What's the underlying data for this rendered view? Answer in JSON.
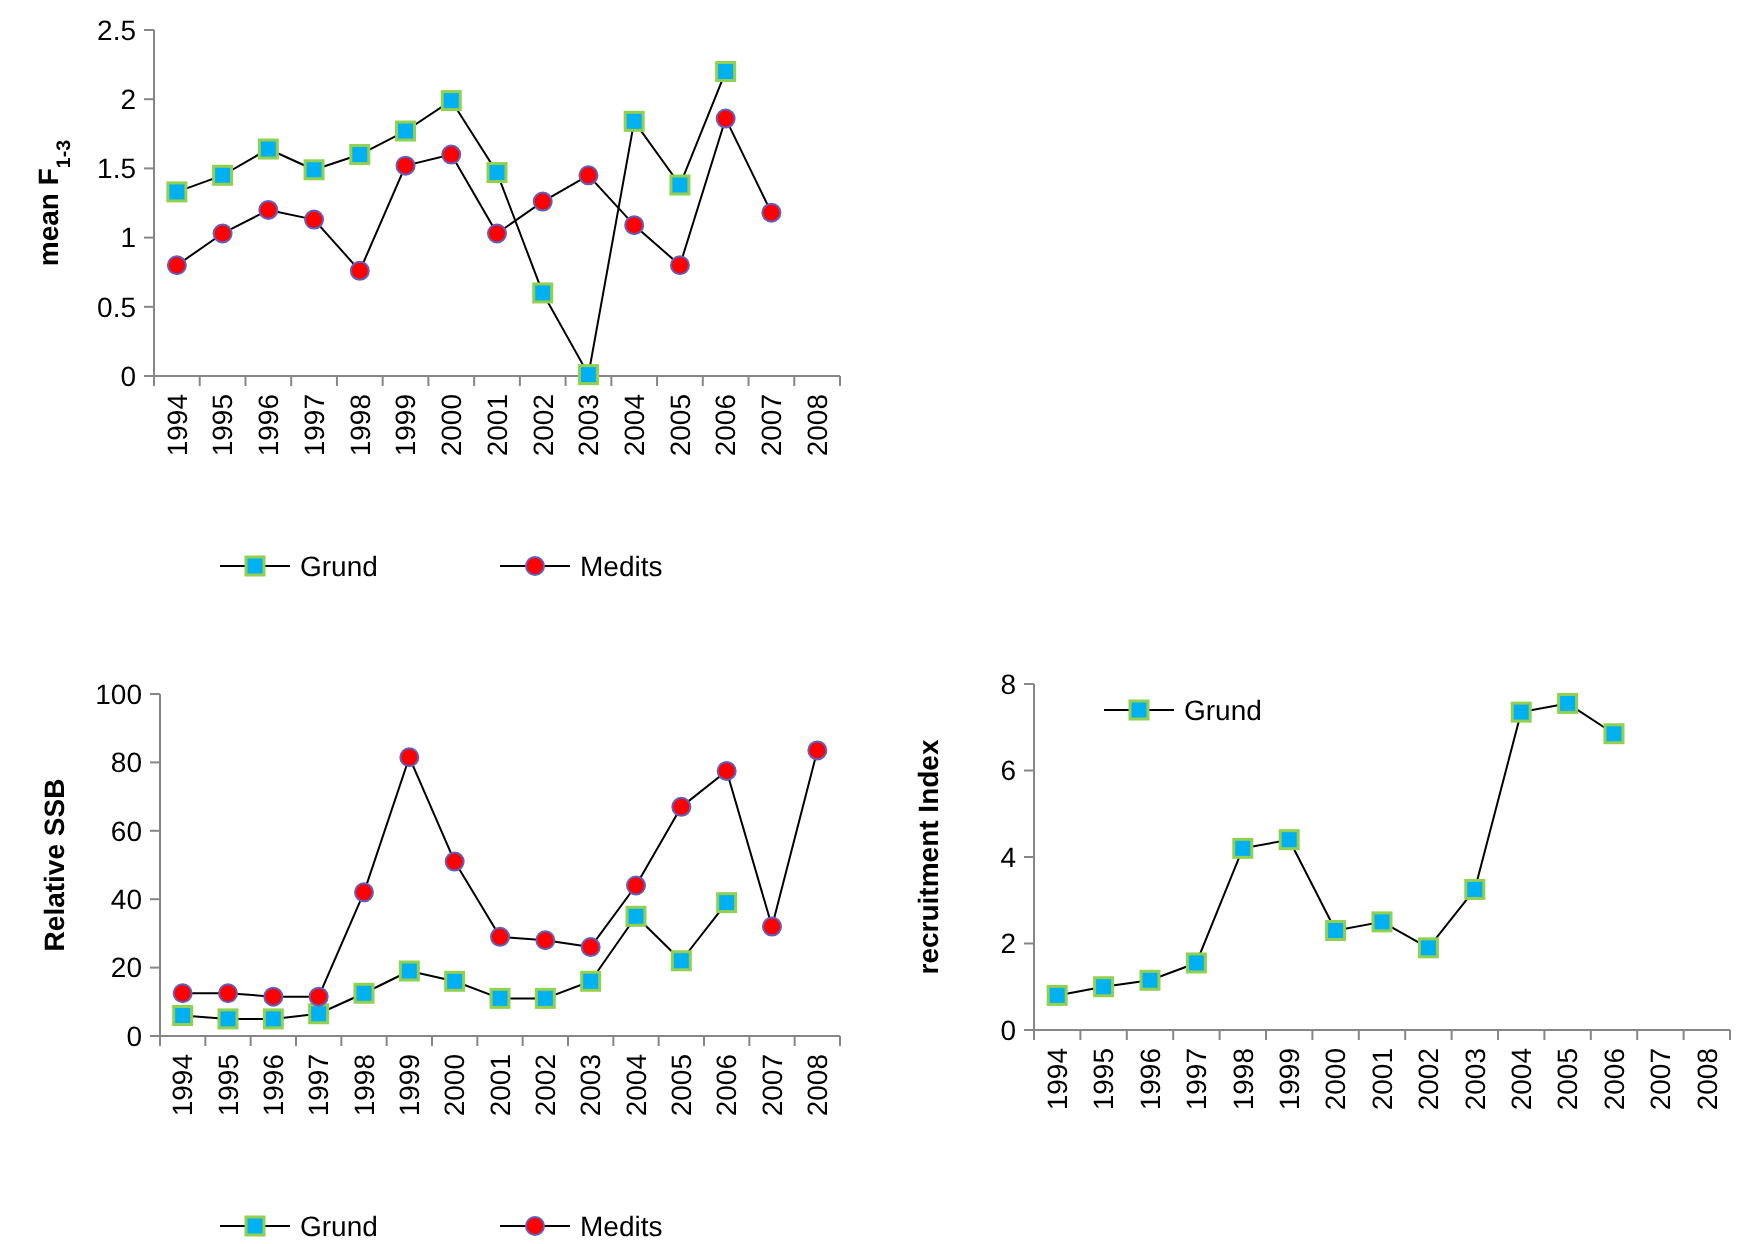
{
  "chart_data": [
    {
      "type": "line",
      "ylabel": "mean F$_{1-3}$",
      "categories": [
        "1994",
        "1995",
        "1996",
        "1997",
        "1998",
        "1999",
        "2000",
        "2001",
        "2002",
        "2003",
        "2004",
        "2005",
        "2006",
        "2007",
        "2008"
      ],
      "ylim": [
        0,
        2.5
      ],
      "yticks": [
        0,
        0.5,
        1,
        1.5,
        2,
        2.5
      ],
      "grid": false,
      "legend": "bottom",
      "series": [
        {
          "name": "Grund",
          "color": "#00b0f0",
          "marker": "square",
          "values": [
            1.33,
            1.45,
            1.64,
            1.49,
            1.6,
            1.77,
            1.99,
            1.47,
            0.6,
            0.01,
            1.84,
            1.38,
            2.2,
            null,
            null
          ]
        },
        {
          "name": "Medits",
          "color": "#ff0000",
          "marker": "circle",
          "values": [
            0.8,
            1.03,
            1.2,
            1.13,
            0.76,
            1.52,
            1.6,
            1.03,
            1.26,
            1.45,
            1.09,
            0.8,
            1.86,
            1.18,
            null
          ]
        }
      ]
    },
    {
      "type": "line",
      "ylabel": "Relative SSB",
      "categories": [
        "1994",
        "1995",
        "1996",
        "1997",
        "1998",
        "1999",
        "2000",
        "2001",
        "2002",
        "2003",
        "2004",
        "2005",
        "2006",
        "2007",
        "2008"
      ],
      "ylim": [
        0,
        100
      ],
      "yticks": [
        0,
        20,
        40,
        60,
        80,
        100
      ],
      "grid": false,
      "legend": "bottom",
      "series": [
        {
          "name": "Grund",
          "color": "#00b0f0",
          "marker": "square",
          "values": [
            6,
            5,
            5,
            6.5,
            12.5,
            19,
            16,
            11,
            11,
            16,
            35,
            22,
            39,
            null,
            null
          ]
        },
        {
          "name": "Medits",
          "color": "#ff0000",
          "marker": "circle",
          "values": [
            12.5,
            12.5,
            11.5,
            11.5,
            42,
            81.5,
            51,
            29,
            28,
            26,
            44,
            67,
            77.5,
            32,
            83.5
          ]
        }
      ]
    },
    {
      "type": "line",
      "ylabel": "recruitment Index",
      "categories": [
        "1994",
        "1995",
        "1996",
        "1997",
        "1998",
        "1999",
        "2000",
        "2001",
        "2002",
        "2003",
        "2004",
        "2005",
        "2006",
        "2007",
        "2008"
      ],
      "ylim": [
        0,
        8
      ],
      "yticks": [
        0,
        2,
        4,
        6,
        8
      ],
      "grid": false,
      "legend": "top left",
      "series": [
        {
          "name": "Grund",
          "color": "#00b0f0",
          "marker": "square",
          "values": [
            0.8,
            1,
            1.15,
            1.55,
            4.2,
            4.4,
            2.3,
            2.5,
            1.9,
            3.25,
            7.35,
            7.55,
            6.85,
            null,
            null
          ]
        }
      ]
    }
  ]
}
